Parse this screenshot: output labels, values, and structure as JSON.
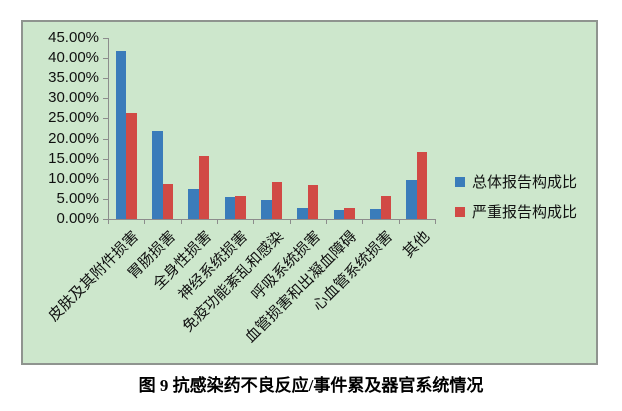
{
  "figure": {
    "caption": "图 9  抗感染药不良反应/事件累及器官系统情况"
  },
  "chart_data": {
    "type": "bar",
    "title": "",
    "xlabel": "",
    "ylabel": "",
    "categories": [
      "皮肤及其附件损害",
      "胃肠损害",
      "全身性损害",
      "神经系统损害",
      "免疫功能紊乱和感染",
      "呼吸系统损害",
      "血管损害和出凝血障碍",
      "心血管系统损害",
      "其他"
    ],
    "series": [
      {
        "name": "总体报告构成比",
        "color": "#3a7cba",
        "values": [
          41.8,
          22.0,
          7.5,
          5.4,
          4.8,
          2.7,
          2.3,
          2.4,
          9.6
        ]
      },
      {
        "name": "严重报告构成比",
        "color": "#d14a45",
        "values": [
          26.3,
          8.7,
          15.6,
          5.6,
          9.1,
          8.5,
          2.7,
          5.6,
          16.6
        ]
      }
    ],
    "ylim": [
      0,
      45
    ],
    "ytick_labels": [
      "45.00%",
      "40.00%",
      "35.00%",
      "30.00%",
      "25.00%",
      "20.00%",
      "15.00%",
      "10.00%",
      "5.00%",
      "0.00%"
    ],
    "grid": false,
    "legend_position": "right-middle",
    "plot_bg": "#cde7cc",
    "axis_color": "#8c8c8c"
  }
}
